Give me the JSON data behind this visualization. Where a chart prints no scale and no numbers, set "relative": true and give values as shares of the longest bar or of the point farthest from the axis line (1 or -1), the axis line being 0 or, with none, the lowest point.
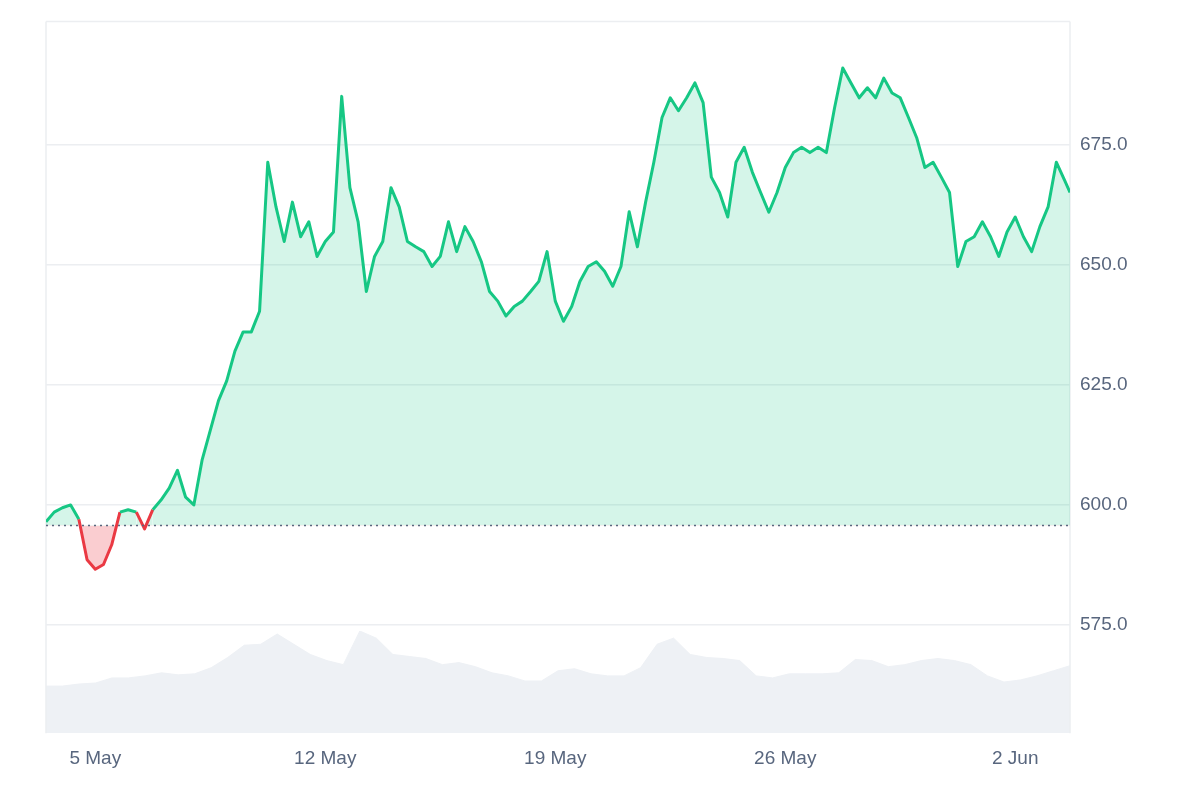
{
  "chart_data": [
    {
      "type": "area",
      "x": [
        "--05-03T12:00",
        "--05-03T18:00",
        "--05-04T00:00",
        "--05-04T06:00",
        "--05-04T12:00",
        "--05-04T18:00",
        "--05-05T00:00",
        "--05-05T06:00",
        "--05-05T12:00",
        "--05-05T18:00",
        "--05-06T00:00",
        "--05-06T06:00",
        "--05-06T12:00",
        "--05-06T18:00",
        "--05-07T00:00",
        "--05-07T06:00",
        "--05-07T12:00",
        "--05-07T18:00",
        "--05-08T00:00",
        "--05-08T06:00",
        "--05-08T12:00",
        "--05-08T18:00",
        "--05-09T00:00",
        "--05-09T06:00",
        "--05-09T12:00",
        "--05-09T18:00",
        "--05-10T00:00",
        "--05-10T06:00",
        "--05-10T12:00",
        "--05-10T18:00",
        "--05-11T00:00",
        "--05-11T06:00",
        "--05-11T12:00",
        "--05-11T18:00",
        "--05-12T00:00",
        "--05-12T06:00",
        "--05-12T12:00",
        "--05-12T18:00",
        "--05-13T00:00",
        "--05-13T06:00",
        "--05-13T12:00",
        "--05-13T18:00",
        "--05-14T00:00",
        "--05-14T06:00",
        "--05-14T12:00",
        "--05-14T18:00",
        "--05-15T00:00",
        "--05-15T06:00",
        "--05-15T12:00",
        "--05-15T18:00",
        "--05-16T00:00",
        "--05-16T06:00",
        "--05-16T12:00",
        "--05-16T18:00",
        "--05-17T00:00",
        "--05-17T06:00",
        "--05-17T12:00",
        "--05-17T18:00",
        "--05-18T00:00",
        "--05-18T06:00",
        "--05-18T12:00",
        "--05-18T18:00",
        "--05-19T00:00",
        "--05-19T06:00",
        "--05-19T12:00",
        "--05-19T18:00",
        "--05-20T00:00",
        "--05-20T06:00",
        "--05-20T12:00",
        "--05-20T18:00",
        "--05-21T00:00",
        "--05-21T06:00",
        "--05-21T12:00",
        "--05-21T18:00",
        "--05-22T00:00",
        "--05-22T06:00",
        "--05-22T12:00",
        "--05-22T18:00",
        "--05-23T00:00",
        "--05-23T06:00",
        "--05-23T12:00",
        "--05-23T18:00",
        "--05-24T00:00",
        "--05-24T06:00",
        "--05-24T12:00",
        "--05-24T18:00",
        "--05-25T00:00",
        "--05-25T06:00",
        "--05-25T12:00",
        "--05-25T18:00",
        "--05-26T00:00",
        "--05-26T06:00",
        "--05-26T12:00",
        "--05-26T18:00",
        "--05-27T00:00",
        "--05-27T06:00",
        "--05-27T12:00",
        "--05-27T18:00",
        "--05-28T00:00",
        "--05-28T06:00",
        "--05-28T12:00",
        "--05-28T18:00",
        "--05-29T00:00",
        "--05-29T06:00",
        "--05-29T12:00",
        "--05-29T18:00",
        "--05-30T00:00",
        "--05-30T06:00",
        "--05-30T12:00",
        "--05-30T18:00",
        "--05-31T00:00",
        "--05-31T06:00",
        "--05-31T12:00",
        "--05-31T18:00",
        "--06-01T00:00",
        "--06-01T06:00",
        "--06-01T12:00",
        "--06-01T18:00",
        "--06-02T00:00",
        "--06-02T06:00",
        "--06-02T12:00",
        "--06-02T18:00",
        "--06-03T00:00",
        "--06-03T06:00",
        "--06-03T12:00",
        "--06-03T16:00"
      ],
      "series": [
        {
          "color": "#16c784",
          "values": [
            596.5,
            598.5,
            599.4,
            600,
            597,
            588.6,
            586.6,
            587.6,
            591.7,
            598.5,
            599,
            598.5,
            595,
            599,
            601,
            603.5,
            607.2,
            601.6,
            600,
            609.3,
            615.5,
            621.7,
            625.8,
            632,
            636,
            636,
            640.3,
            671.3,
            662,
            654.8,
            663,
            655.8,
            658.9,
            651.7,
            654.8,
            656.8,
            685,
            666,
            658.9,
            644.4,
            651.7,
            654.8,
            666,
            662,
            654.8,
            653.7,
            652.7,
            649.6,
            651.7,
            658.9,
            652.7,
            657.9,
            654.8,
            650.6,
            644.4,
            642.4,
            639.3,
            641.3,
            642.4,
            644.4,
            646.5,
            652.7,
            642.4,
            638.2,
            641.3,
            646.5,
            649.6,
            650.6,
            648.6,
            645.5,
            649.6,
            661,
            653.7,
            663,
            671.3,
            680.6,
            684.7,
            682,
            684.7,
            687.8,
            683.7,
            668.2,
            665,
            659.9,
            671.3,
            674.4,
            669.2,
            665,
            660.9,
            665,
            670.2,
            673.3,
            674.4,
            673.3,
            674.4,
            673.3,
            682.6,
            690.9,
            687.8,
            684.7,
            686.8,
            684.7,
            688.8,
            685.7,
            684.7,
            680.6,
            676.4,
            670.2,
            671.3,
            668.2,
            665,
            649.6,
            654.8,
            655.8,
            658.9,
            655.8,
            651.7,
            656.8,
            659.9,
            655.8,
            652.7,
            657.9,
            662,
            671.3,
            667.6,
            665
          ],
          "colors": [
            "#16c784",
            "#16c784",
            "#16c784",
            "#16c784",
            "#16c784",
            "#ea3943",
            "#ea3943",
            "#ea3943",
            "#ea3943",
            "#16c784",
            "#16c784",
            "#16c784",
            "#ea3943",
            "#16c784",
            "#16c784",
            "#16c784",
            "#16c784",
            "#16c784",
            "#16c784",
            "#16c784",
            "#16c784",
            "#16c784",
            "#16c784",
            "#16c784",
            "#16c784",
            "#16c784",
            "#16c784",
            "#16c784",
            "#16c784",
            "#16c784",
            "#16c784",
            "#16c784",
            "#16c784",
            "#16c784",
            "#16c784",
            "#16c784",
            "#16c784",
            "#16c784",
            "#16c784",
            "#16c784",
            "#16c784",
            "#16c784",
            "#16c784",
            "#16c784",
            "#16c784",
            "#16c784",
            "#16c784",
            "#16c784",
            "#16c784",
            "#16c784",
            "#16c784",
            "#16c784",
            "#16c784",
            "#16c784",
            "#16c784",
            "#16c784",
            "#16c784",
            "#16c784",
            "#16c784",
            "#16c784",
            "#16c784",
            "#16c784",
            "#16c784",
            "#16c784",
            "#16c784",
            "#16c784",
            "#16c784",
            "#16c784",
            "#16c784",
            "#16c784",
            "#16c784",
            "#16c784",
            "#16c784",
            "#16c784",
            "#16c784",
            "#16c784",
            "#16c784",
            "#16c784",
            "#16c784",
            "#16c784",
            "#16c784",
            "#16c784",
            "#16c784",
            "#16c784",
            "#16c784",
            "#16c784",
            "#16c784",
            "#16c784",
            "#16c784",
            "#16c784",
            "#16c784",
            "#16c784",
            "#16c784",
            "#16c784",
            "#16c784",
            "#16c784",
            "#16c784",
            "#16c784",
            "#16c784",
            "#16c784",
            "#16c784",
            "#16c784",
            "#16c784",
            "#16c784",
            "#16c784",
            "#16c784",
            "#16c784",
            "#16c784",
            "#16c784",
            "#16c784",
            "#16c784",
            "#16c784",
            "#16c784",
            "#16c784",
            "#16c784",
            "#16c784",
            "#16c784",
            "#16c784",
            "#16c784",
            "#16c784",
            "#16c784",
            "#16c784",
            "#16c784",
            "#16c784",
            "#16c784",
            "#16c784"
          ]
        }
      ],
      "xlim": [
        "--05-03T12:00",
        "--06-03T16:00"
      ],
      "xticks": [
        {
          "value": "--05-05",
          "label": "5 May"
        },
        {
          "value": "--05-12",
          "label": "12 May"
        },
        {
          "value": "--05-19",
          "label": "19 May"
        },
        {
          "value": "--05-26",
          "label": "26 May"
        },
        {
          "value": "--06-02",
          "label": "2 Jun"
        }
      ],
      "ylim": [
        552.5,
        700.6
      ],
      "yticks": [
        {
          "value": 575,
          "label": "575.0"
        },
        {
          "value": 600,
          "label": "600.0"
        },
        {
          "value": 625,
          "label": "625.0"
        },
        {
          "value": 650,
          "label": "650.0"
        },
        {
          "value": 675,
          "label": "675.0"
        }
      ],
      "ref_lines": [
        {
          "axis": "y",
          "value": 595.7,
          "color": "#58667e",
          "line_style": "dotted"
        }
      ],
      "grid": "y",
      "legend": false,
      "marker": "none",
      "line_style": "solid"
    },
    {
      "type": "area",
      "relative": true,
      "color": "#eef1f5",
      "marker": "none",
      "categories": [
        null,
        null,
        null,
        null,
        null,
        null,
        null,
        null,
        null,
        null,
        null,
        null,
        null,
        null,
        null,
        null,
        null,
        null,
        null,
        null,
        null,
        null,
        null,
        null,
        null,
        null,
        null,
        null,
        null,
        null,
        null,
        null,
        null,
        null,
        null,
        null,
        null,
        null,
        null,
        null,
        null,
        null,
        null,
        null,
        null,
        null,
        null,
        null,
        null,
        null,
        null,
        null,
        null,
        null,
        null,
        null,
        null,
        null,
        null,
        null,
        null,
        null,
        null
      ],
      "values": [
        0.46,
        0.46,
        0.48,
        0.49,
        0.54,
        0.54,
        0.56,
        0.59,
        0.57,
        0.58,
        0.64,
        0.74,
        0.86,
        0.87,
        0.97,
        0.87,
        0.77,
        0.71,
        0.67,
        1,
        0.93,
        0.77,
        0.75,
        0.73,
        0.67,
        0.69,
        0.65,
        0.59,
        0.56,
        0.51,
        0.51,
        0.61,
        0.63,
        0.58,
        0.56,
        0.56,
        0.64,
        0.87,
        0.93,
        0.77,
        0.74,
        0.73,
        0.71,
        0.56,
        0.54,
        0.58,
        0.58,
        0.58,
        0.59,
        0.72,
        0.71,
        0.65,
        0.67,
        0.71,
        0.73,
        0.71,
        0.67,
        0.56,
        0.5,
        0.52,
        0.56,
        0.61,
        0.66
      ]
    }
  ]
}
